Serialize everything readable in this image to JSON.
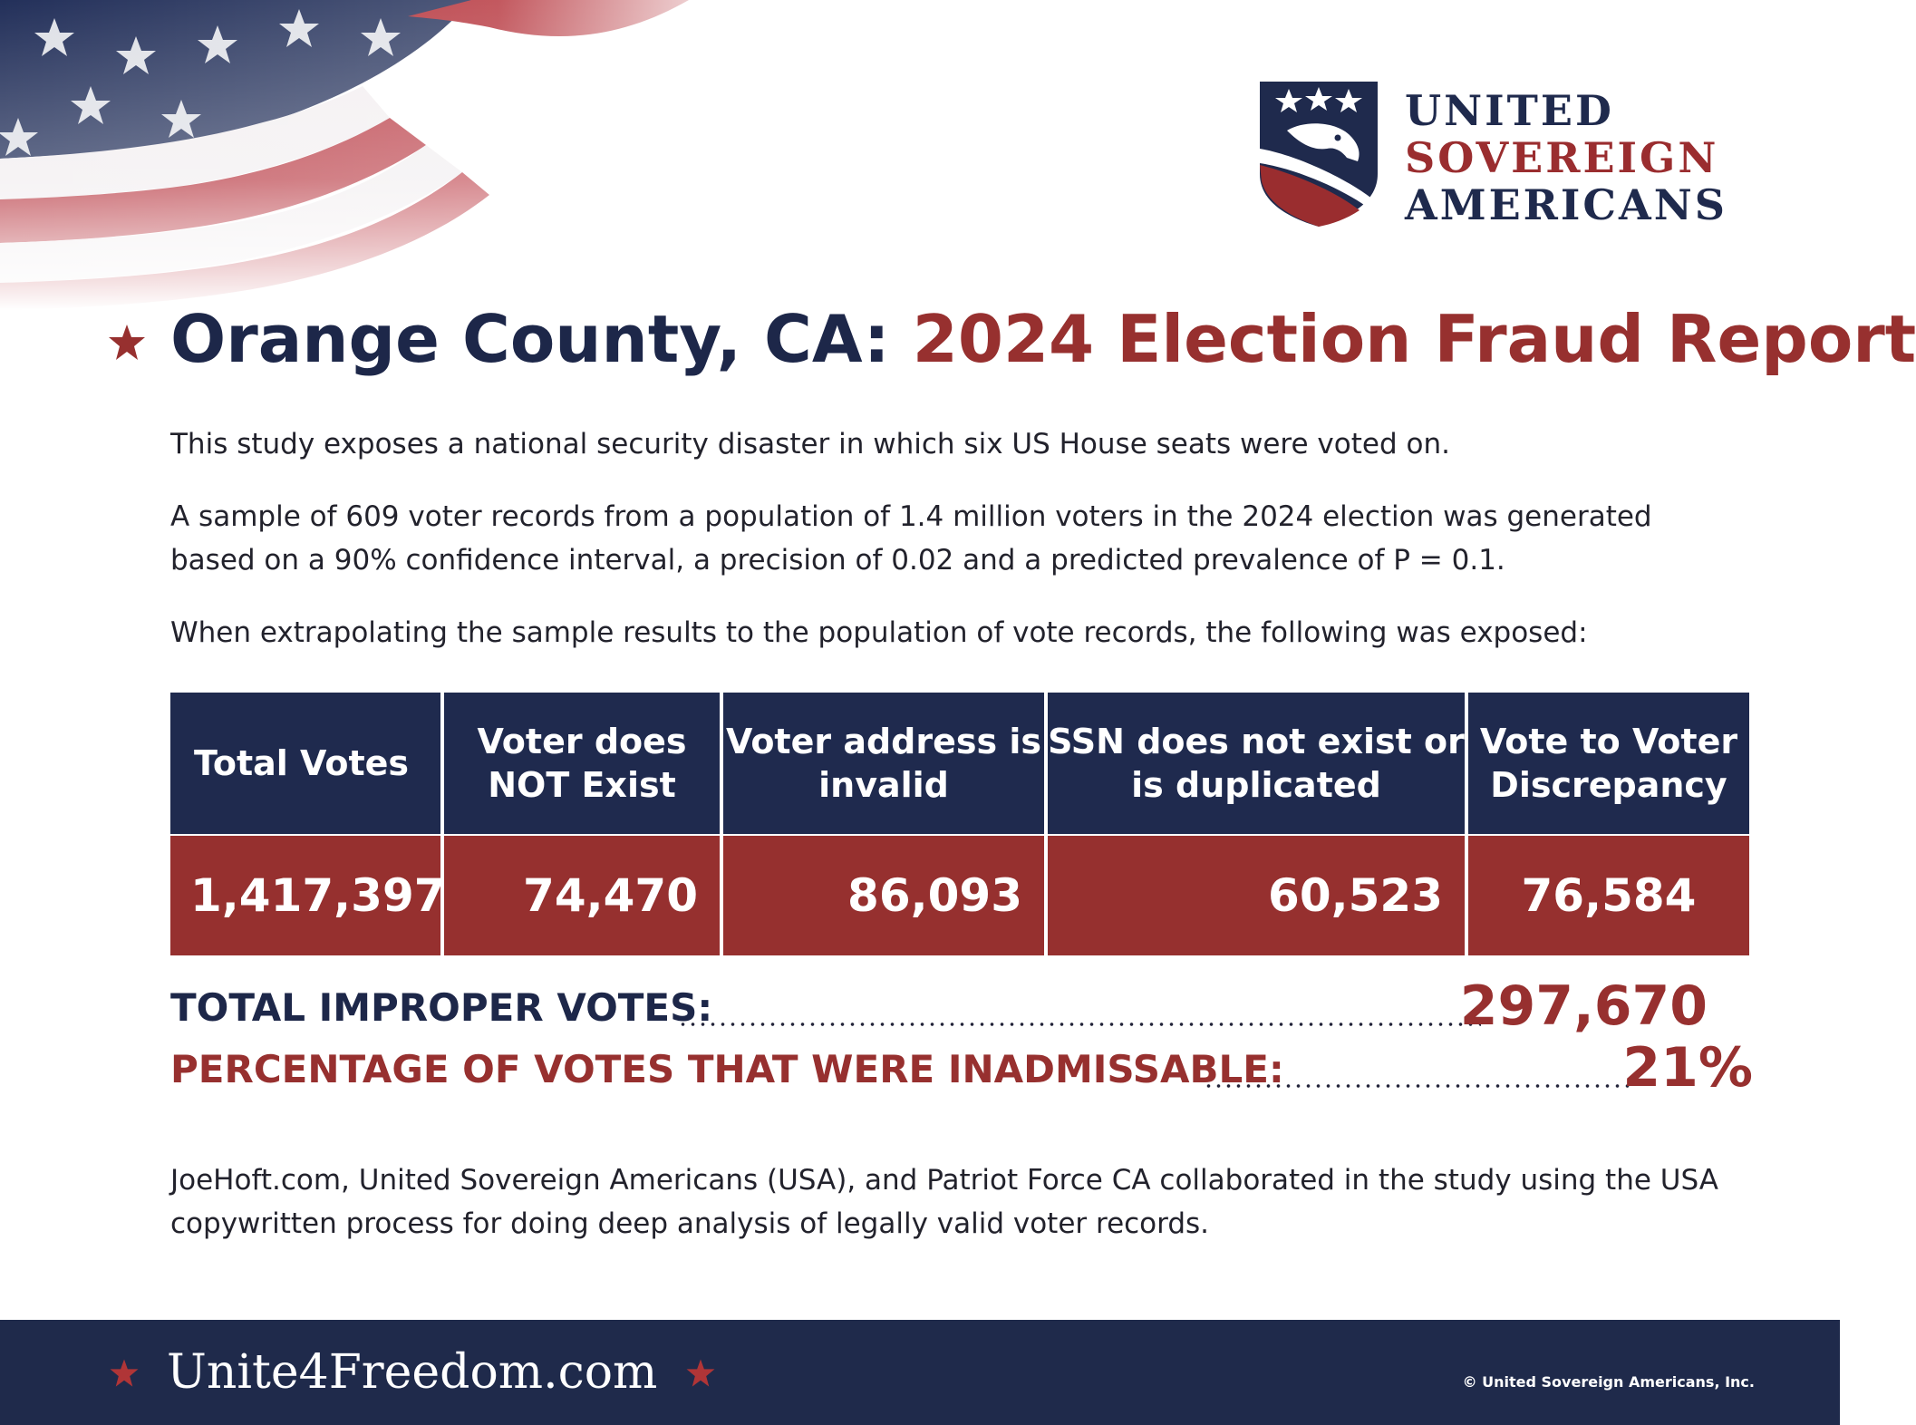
{
  "header": {
    "logo": {
      "line1": "UNITED",
      "line2": "SOVEREIGN",
      "line3": "AMERICANS"
    }
  },
  "title": {
    "part1": "Orange County, CA:",
    "part2": "2024 Election Fraud Report"
  },
  "paragraphs": {
    "p1": "This study exposes a national security disaster in which six US House seats were voted on.",
    "p2": "A sample of 609 voter records from a population of 1.4 million voters in the 2024 election was generated based on a 90% confidence interval, a precision of 0.02 and a predicted prevalence of P = 0.1.",
    "p3": "When extrapolating the sample results to the population of vote records, the following was exposed:",
    "p4": "JoeHoft.com, United Sovereign Americans (USA), and Patriot Force CA collaborated in the study using the USA copywritten process for doing deep analysis of legally valid voter records."
  },
  "table": {
    "headers": [
      "Total Votes",
      "Voter does NOT Exist",
      "Voter address is invalid",
      "SSN does not exist or is duplicated",
      "Vote to Voter Discrepancy"
    ],
    "values": [
      "1,417,397",
      "74,470",
      "86,093",
      "60,523",
      "76,584"
    ]
  },
  "totals": {
    "improper_label": "TOTAL IMPROPER VOTES:",
    "improper_value": "297,670",
    "percentage_label": "PERCENTAGE OF VOTES THAT WERE INADMISSABLE:",
    "percentage_value": "21%"
  },
  "footer": {
    "website": "Unite4Freedom.com",
    "copyright": "© United Sovereign Americans, Inc."
  },
  "colors": {
    "navy": "#1f2a4e",
    "red": "#96302f"
  }
}
